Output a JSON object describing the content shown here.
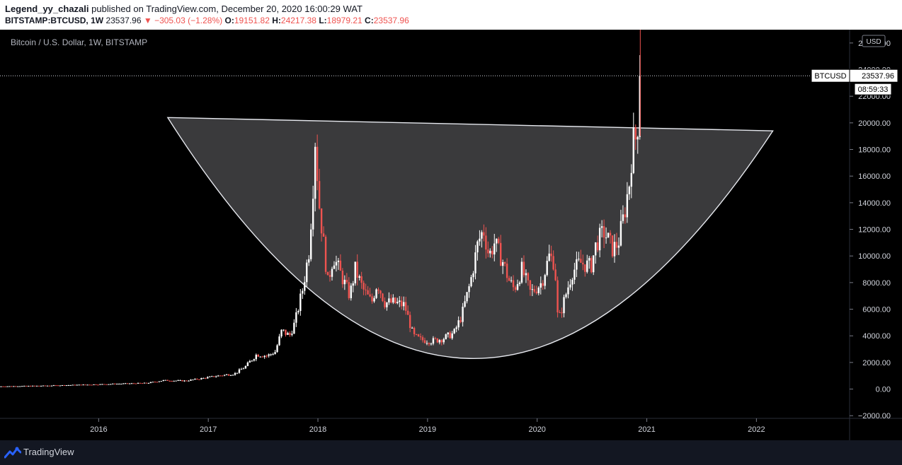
{
  "header": {
    "author": "Legend_yy_chazali",
    "published_text": "published on TradingView.com, December 20, 2020 16:00:29 WAT",
    "symbol": "BITSTAMP:BTCUSD, 1W",
    "last": "23537.96",
    "change": "▼ −305.03 (−1.28%)",
    "o_label": "O:",
    "o_value": "19151.82",
    "h_label": "H:",
    "h_value": "24217.38",
    "l_label": "L:",
    "l_value": "18979.21",
    "c_label": "C:",
    "c_value": "23537.96"
  },
  "chart_data": {
    "type": "candlestick",
    "title": "Bitcoin / U.S. Dollar, 1W, BITSTAMP",
    "currency": "USD",
    "price_ticks": [
      "−2000.00",
      "0.00",
      "2000.00",
      "4000.00",
      "6000.00",
      "8000.00",
      "10000.00",
      "12000.00",
      "14000.00",
      "16000.00",
      "18000.00",
      "20000.00",
      "22000.00",
      "24000.00",
      "26000.00"
    ],
    "ylim": [
      -2200,
      27000
    ],
    "time_ticks": [
      "2016",
      "2017",
      "2018",
      "2019",
      "2020",
      "2021",
      "2022"
    ],
    "xlim": [
      2015.1,
      2022.85
    ],
    "last_price_label": "BTCUSD",
    "last_price": 23537.96,
    "countdown": "08:59:33",
    "colors": {
      "up": "#ffffff",
      "down": "#ef5350",
      "background": "#000000"
    },
    "cup_shape": {
      "top_left": [
        2016.63,
        20400
      ],
      "top_right": [
        2022.15,
        19400
      ],
      "bottom": [
        2019.38,
        2300
      ]
    },
    "price_path": [
      [
        2015.1,
        200
      ],
      [
        2015.5,
        250
      ],
      [
        2015.9,
        330
      ],
      [
        2016.2,
        400
      ],
      [
        2016.45,
        450
      ],
      [
        2016.6,
        650
      ],
      [
        2016.8,
        620
      ],
      [
        2016.95,
        800
      ],
      [
        2017.1,
        1000
      ],
      [
        2017.25,
        1150
      ],
      [
        2017.35,
        1700
      ],
      [
        2017.45,
        2600
      ],
      [
        2017.55,
        2500
      ],
      [
        2017.62,
        2800
      ],
      [
        2017.68,
        4400
      ],
      [
        2017.75,
        4000
      ],
      [
        2017.8,
        5000
      ],
      [
        2017.87,
        7500
      ],
      [
        2017.93,
        10500
      ],
      [
        2017.97,
        16000
      ],
      [
        2017.98,
        19500
      ],
      [
        2018.02,
        14000
      ],
      [
        2018.06,
        11000
      ],
      [
        2018.1,
        8000
      ],
      [
        2018.15,
        10000
      ],
      [
        2018.25,
        8000
      ],
      [
        2018.3,
        7000
      ],
      [
        2018.35,
        9000
      ],
      [
        2018.42,
        7500
      ],
      [
        2018.5,
        6500
      ],
      [
        2018.55,
        8000
      ],
      [
        2018.62,
        6500
      ],
      [
        2018.7,
        6500
      ],
      [
        2018.8,
        6300
      ],
      [
        2018.88,
        4000
      ],
      [
        2018.95,
        3700
      ],
      [
        2019.05,
        3600
      ],
      [
        2019.15,
        3800
      ],
      [
        2019.25,
        4200
      ],
      [
        2019.32,
        5500
      ],
      [
        2019.4,
        8000
      ],
      [
        2019.47,
        11000
      ],
      [
        2019.52,
        12000
      ],
      [
        2019.57,
        10000
      ],
      [
        2019.62,
        11000
      ],
      [
        2019.7,
        9500
      ],
      [
        2019.75,
        8200
      ],
      [
        2019.8,
        7500
      ],
      [
        2019.87,
        9000
      ],
      [
        2019.95,
        7200
      ],
      [
        2020.05,
        8000
      ],
      [
        2020.12,
        10000
      ],
      [
        2020.17,
        9500
      ],
      [
        2020.2,
        5000
      ],
      [
        2020.25,
        6500
      ],
      [
        2020.33,
        8800
      ],
      [
        2020.4,
        9500
      ],
      [
        2020.5,
        9200
      ],
      [
        2020.55,
        11000
      ],
      [
        2020.62,
        11800
      ],
      [
        2020.7,
        10500
      ],
      [
        2020.75,
        11000
      ],
      [
        2020.8,
        13000
      ],
      [
        2020.85,
        15500
      ],
      [
        2020.88,
        18500
      ],
      [
        2020.92,
        19000
      ],
      [
        2020.95,
        23537.96
      ]
    ]
  },
  "footer": {
    "brand": "TradingView"
  }
}
